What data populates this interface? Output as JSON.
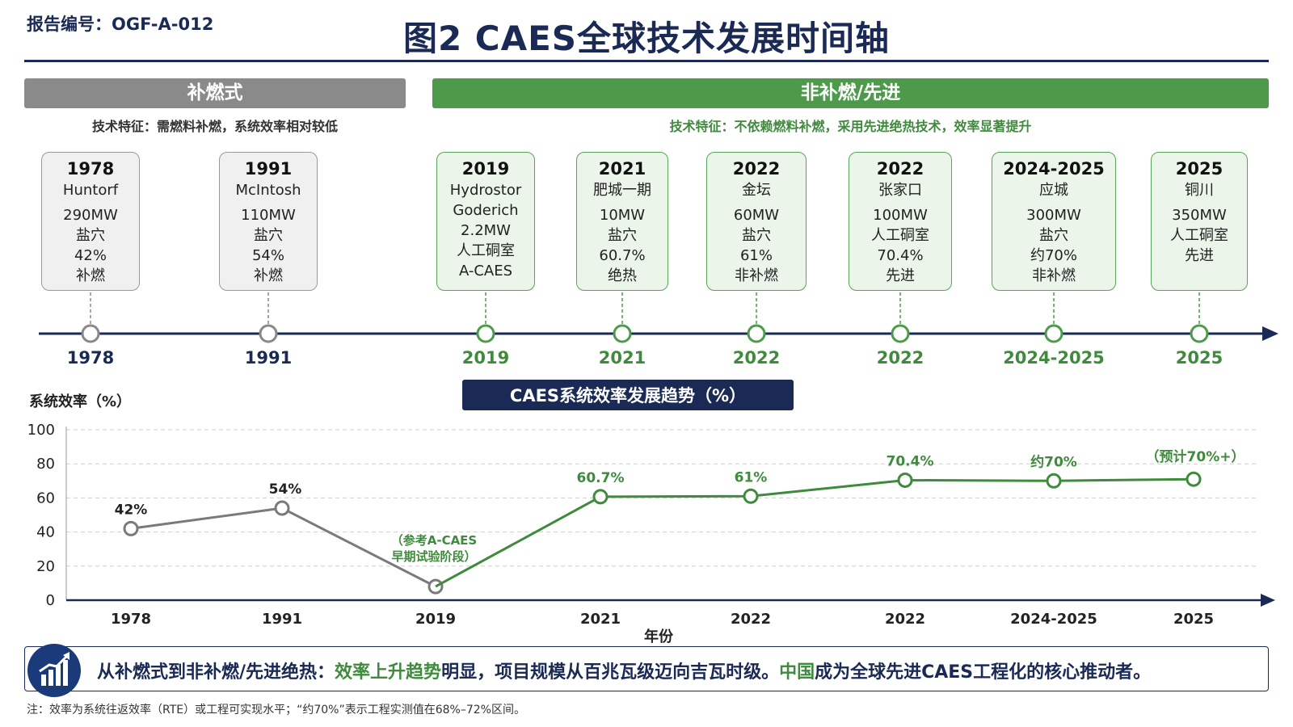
{
  "header": {
    "report_id": "报告编号：OGF-A-012",
    "title": "图2  CAES全球技术发展时间轴"
  },
  "bands": {
    "supplementary": {
      "label": "补燃式",
      "feature": "技术特征：需燃料补燃，系统效率相对较低"
    },
    "advanced": {
      "label": "非补燃/先进",
      "feature": "技术特征：不依赖燃料补燃，采用先进绝热技术，效率显著提升"
    }
  },
  "milestones": [
    {
      "year": "1978",
      "lines": [
        "Huntorf",
        "",
        "290MW",
        "盐穴",
        "42%",
        "补燃"
      ],
      "group": "gray"
    },
    {
      "year": "1991",
      "lines": [
        "McIntosh",
        "",
        "110MW",
        "盐穴",
        "54%",
        "补燃"
      ],
      "group": "gray"
    },
    {
      "year": "2019",
      "lines": [
        "Hydrostor",
        "Goderich",
        "2.2MW",
        "人工硐室",
        "A-CAES"
      ],
      "group": "green"
    },
    {
      "year": "2021",
      "lines": [
        "肥城一期",
        "",
        "10MW",
        "盐穴",
        "60.7%",
        "绝热"
      ],
      "group": "green"
    },
    {
      "year": "2022",
      "lines": [
        "金坛",
        "",
        "60MW",
        "盐穴",
        "61%",
        "非补燃"
      ],
      "group": "green"
    },
    {
      "year": "2022",
      "lines": [
        "张家口",
        "",
        "100MW",
        "人工硐室",
        "70.4%",
        "先进"
      ],
      "group": "green"
    },
    {
      "year": "2024-2025",
      "lines": [
        "应城",
        "",
        "300MW",
        "盐穴",
        "约70%",
        "非补燃"
      ],
      "group": "green"
    },
    {
      "year": "2025",
      "lines": [
        "铜川",
        "",
        "350MW",
        "人工硐室",
        "先进"
      ],
      "group": "green"
    }
  ],
  "timeline_labels": [
    "1978",
    "1991",
    "2019",
    "2021",
    "2022",
    "2022",
    "2024-2025",
    "2025"
  ],
  "colors": {
    "navy": "#1a2a55",
    "gray": "#8a8a8a",
    "green": "#4c9a4a",
    "green_text": "#3f8a3d"
  },
  "chart_data": {
    "type": "line",
    "title": "CAES系统效率发展趋势（%）",
    "ylabel": "系统效率（%）",
    "xlabel": "年份",
    "ylim": [
      0,
      100
    ],
    "yticks": [
      0,
      20,
      40,
      60,
      80,
      100
    ],
    "grid": true,
    "categories": [
      "1978",
      "1991",
      "2019",
      "2021",
      "2022",
      "2022",
      "2024-2025",
      "2025"
    ],
    "series": [
      {
        "color": "#7a7a7a",
        "points": [
          {
            "x": "1978",
            "y": 42,
            "label": "42%"
          },
          {
            "x": "1991",
            "y": 54,
            "label": "54%"
          },
          {
            "x": "2019",
            "y": 8,
            "label": "（参考A-CAES\n早期试验阶段）"
          }
        ]
      },
      {
        "color": "#3f8a3d",
        "points": [
          {
            "x": "2019",
            "y": 8,
            "label": ""
          },
          {
            "x": "2021",
            "y": 60.7,
            "label": "60.7%"
          },
          {
            "x": "2022",
            "y": 61,
            "label": "61%"
          },
          {
            "x": "2022",
            "y": 70.4,
            "label": "70.4%"
          },
          {
            "x": "2024-2025",
            "y": 70,
            "label": "约70%"
          },
          {
            "x": "2025",
            "y": 71,
            "label": "（预计70%+）"
          }
        ]
      }
    ]
  },
  "footer": {
    "icon": "bar-chart-up-icon",
    "parts": [
      {
        "text": "从补燃式到非补燃/先进绝热：",
        "hl": false
      },
      {
        "text": "效率上升趋势",
        "hl": true
      },
      {
        "text": "明显，项目规模从百兆瓦级迈向吉瓦时级。",
        "hl": false
      },
      {
        "text": "中国",
        "hl": true
      },
      {
        "text": "成为全球先进CAES工程化的核心推动者。",
        "hl": false
      }
    ],
    "note": "注：效率为系统往返效率（RTE）或工程可实现水平；“约70%”表示工程实测值在68%–72%区间。"
  }
}
